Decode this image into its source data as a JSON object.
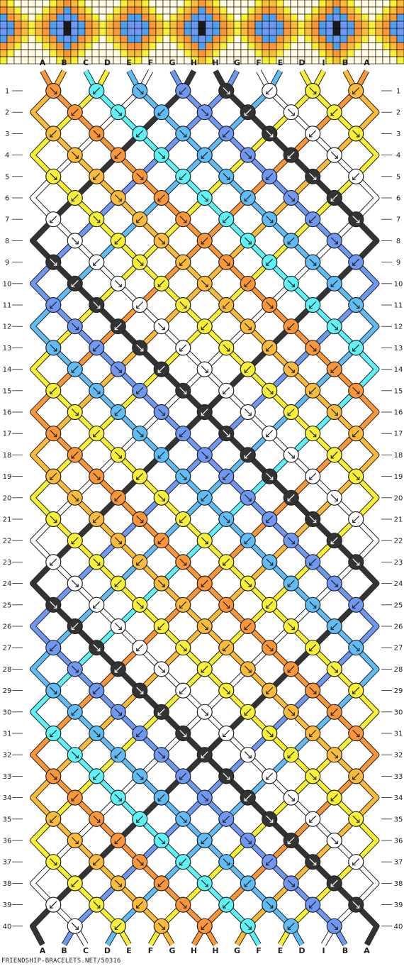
{
  "strands_top": [
    "A",
    "B",
    "C",
    "D",
    "E",
    "F",
    "G",
    "H",
    "H",
    "G",
    "F",
    "E",
    "D",
    "I",
    "B",
    "A"
  ],
  "strands_bottom": [
    "A",
    "B",
    "C",
    "D",
    "E",
    "F",
    "G",
    "H",
    "H",
    "G",
    "F",
    "E",
    "D",
    "I",
    "B",
    "A"
  ],
  "strand_colors": {
    "A": "#fb9638",
    "B": "#fbbb3a",
    "C": "#5ef2f6",
    "D": "#f7f034",
    "E": "#60bcf4",
    "F": "#ffffff",
    "G": "#6f98f3",
    "H": "#333333",
    "I": "#f7f034"
  },
  "row_count": 40,
  "row_labels": [
    "1",
    "2",
    "3",
    "4",
    "5",
    "6",
    "7",
    "8",
    "9",
    "10",
    "11",
    "12",
    "13",
    "14",
    "15",
    "16",
    "17",
    "18",
    "19",
    "20",
    "21",
    "22",
    "23",
    "24",
    "25",
    "26",
    "27",
    "28",
    "29",
    "30",
    "31",
    "32",
    "33",
    "34",
    "35",
    "36",
    "37",
    "38",
    "39",
    "40"
  ],
  "preview_colors": [
    "#1a1a1a",
    "#6f98f3",
    "#4da0f0",
    "#fb9638",
    "#fbbb3a",
    "#f7f034",
    "#fffbe0"
  ],
  "footer": {
    "credit": "FRIENDSHIP-BRACELETS.NET/50316"
  }
}
